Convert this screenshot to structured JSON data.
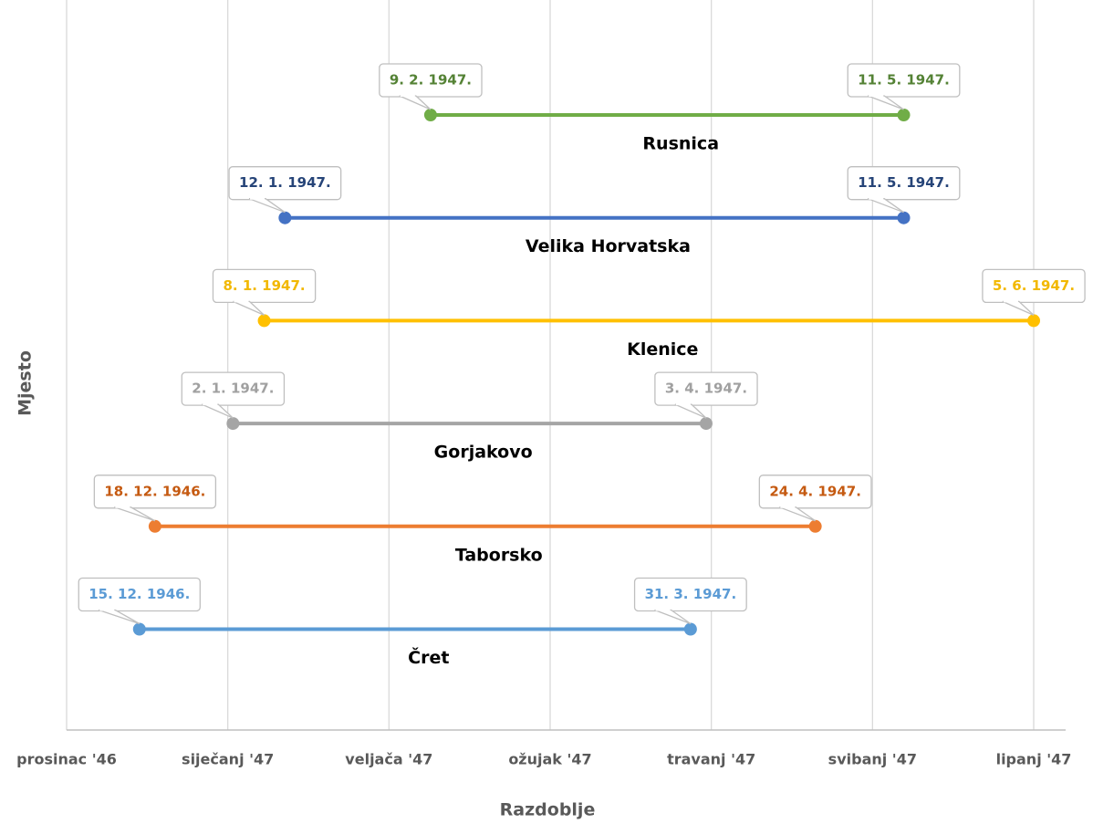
{
  "chart_data": {
    "type": "timeline",
    "x_axis_label": "Razdoblje",
    "y_axis_label": "Mjesto",
    "xlim": [
      "1946-12-01",
      "1947-06-05"
    ],
    "xticks": [
      {
        "value": "1946-12-01",
        "label": "prosinac '46"
      },
      {
        "value": "1947-01-01",
        "label": "siječanj '47"
      },
      {
        "value": "1947-02-01",
        "label": "veljača '47"
      },
      {
        "value": "1947-03-04",
        "label": "ožujak '47"
      },
      {
        "value": "1947-04-04",
        "label": "travanj '47"
      },
      {
        "value": "1947-05-05",
        "label": "svibanj '47"
      },
      {
        "value": "1947-06-05",
        "label": "lipanj '47"
      }
    ],
    "grid": true,
    "series": [
      {
        "name": "Rusnica",
        "color": "#70ad47",
        "label_color": "#548235",
        "values": [
          "1947-02-09",
          "1947-05-11"
        ],
        "value_labels": [
          "9. 2. 1947.",
          "11. 5. 1947."
        ]
      },
      {
        "name": "Velika Horvatska",
        "color": "#4472c4",
        "label_color": "#264478",
        "values": [
          "1947-01-12",
          "1947-05-11"
        ],
        "value_labels": [
          "12. 1. 1947.",
          "11. 5. 1947."
        ]
      },
      {
        "name": "Klenice",
        "color": "#ffc000",
        "label_color": "#f2b800",
        "values": [
          "1947-01-08",
          "1947-06-05"
        ],
        "value_labels": [
          "8. 1. 1947.",
          "5. 6. 1947."
        ]
      },
      {
        "name": "Gorjakovo",
        "color": "#a5a5a5",
        "label_color": "#a0a0a0",
        "values": [
          "1947-01-02",
          "1947-04-03"
        ],
        "value_labels": [
          "2. 1. 1947.",
          "3. 4. 1947."
        ]
      },
      {
        "name": "Taborsko",
        "color": "#ed7d31",
        "label_color": "#c55a11",
        "values": [
          "1946-12-18",
          "1947-04-24"
        ],
        "value_labels": [
          "18. 12. 1946.",
          "24. 4. 1947."
        ]
      },
      {
        "name": "Čret",
        "color": "#5b9bd5",
        "label_color": "#5b9bd5",
        "values": [
          "1946-12-15",
          "1947-03-31"
        ],
        "value_labels": [
          "15. 12. 1946.",
          "31. 3. 1947."
        ]
      }
    ]
  }
}
